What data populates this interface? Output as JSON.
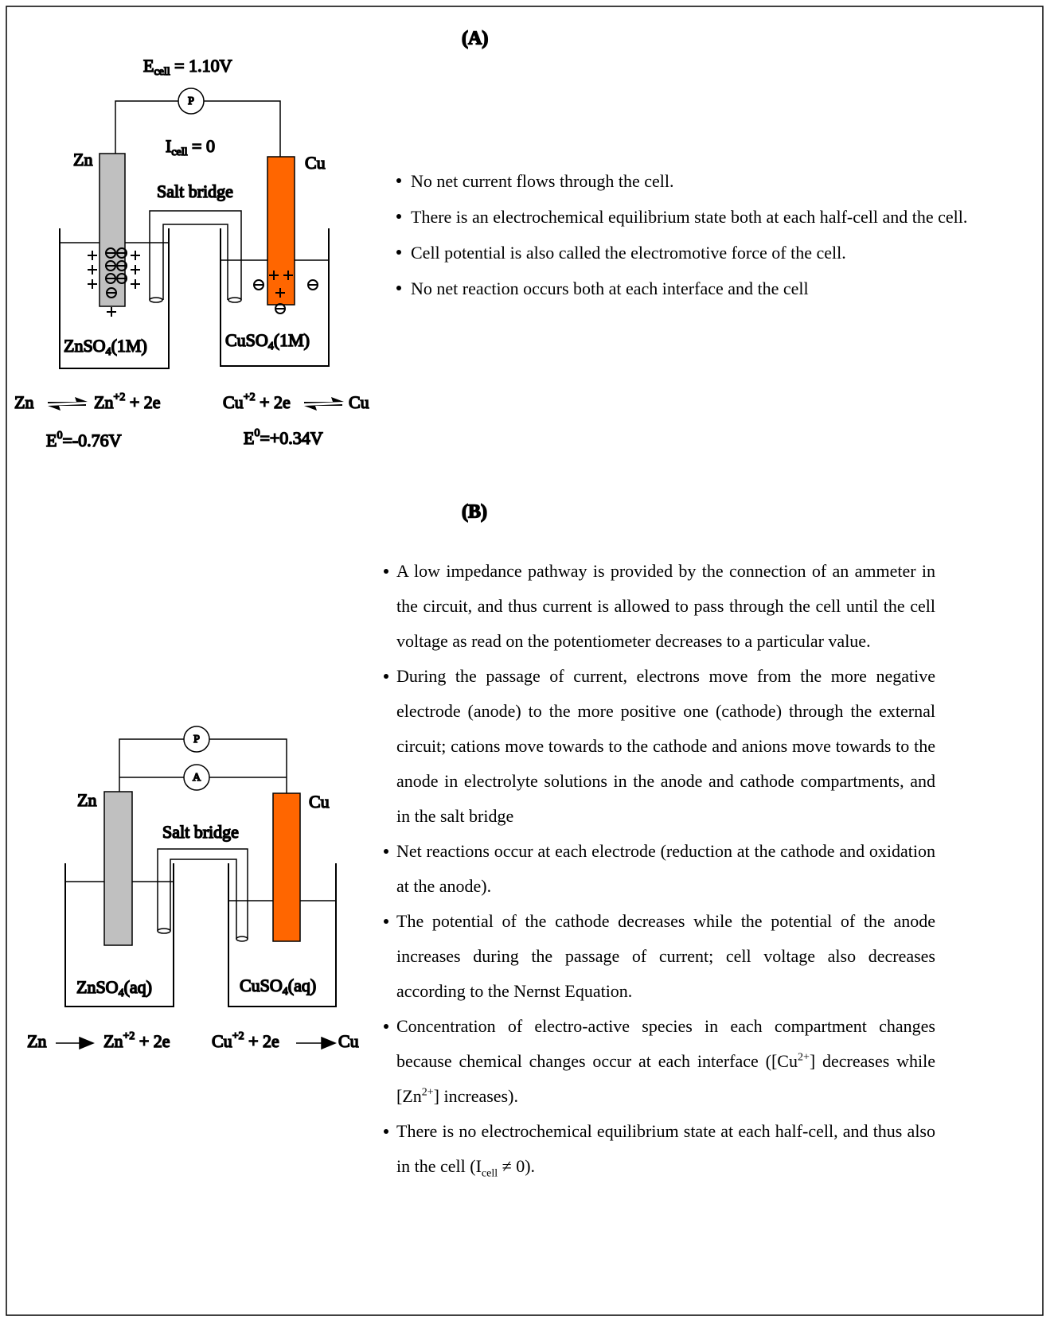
{
  "panel_a": {
    "label": "(A)",
    "voltage": [
      "E",
      {
        "sub": "cell"
      },
      " = 1.10V"
    ],
    "meter": "P",
    "current": [
      "I",
      {
        "sub": "cell"
      },
      " = 0"
    ],
    "anode": "Zn",
    "cathode": "Cu",
    "salt_bridge": "Salt bridge",
    "anode_solution": [
      "ZnSO",
      {
        "sub": "4"
      },
      "(1M)"
    ],
    "cathode_solution": [
      "CuSO",
      {
        "sub": "4"
      },
      "(1M)"
    ],
    "anode_reaction": {
      "reactant": "Zn",
      "product": [
        "Zn",
        {
          "sup": "+2"
        },
        " + 2e"
      ]
    },
    "cathode_reaction": {
      "reactant": [
        "Cu",
        {
          "sup": "+2"
        },
        " + 2e"
      ],
      "product": "Cu"
    },
    "anode_potential": [
      "E",
      {
        "sup": "0"
      },
      "=-0.76V"
    ],
    "cathode_potential": [
      "E",
      {
        "sup": "0"
      },
      "=+0.34V"
    ],
    "notes": [
      [
        "No net current flows through the cell."
      ],
      [
        "There is an electrochemical equilibrium state both at each half-cell and the cell."
      ],
      [
        "Cell potential is also called the electromotive force of the cell."
      ],
      [
        "No net reaction occurs both at each interface and the cell"
      ]
    ]
  },
  "panel_b": {
    "label": "(B)",
    "potentiometer": "P",
    "ammeter": "A",
    "anode": "Zn",
    "cathode": "Cu",
    "salt_bridge": "Salt bridge",
    "anode_solution": [
      "ZnSO",
      {
        "sub": "4"
      },
      "(aq)"
    ],
    "cathode_solution": [
      "CuSO",
      {
        "sub": "4"
      },
      "(aq)"
    ],
    "anode_reaction": {
      "reactant": "Zn",
      "product": [
        "Zn",
        {
          "sup": "+2"
        },
        " + 2e"
      ]
    },
    "cathode_reaction": {
      "reactant": [
        "Cu",
        {
          "sup": "+2"
        },
        " + 2e"
      ],
      "product": "Cu"
    },
    "notes": [
      [
        "A low impedance pathway is provided by the connection of an ammeter in the circuit, and thus current is allowed to pass through the cell until the cell voltage as read on the potentiometer decreases to a particular value."
      ],
      [
        "During the passage of current, electrons move from the more negative electrode (anode) to the more positive one (cathode) through the external circuit; cations move towards to the cathode and anions move towards to the anode in electrolyte solutions in the anode and cathode compartments, and in the salt bridge"
      ],
      [
        "Net reactions occur at each electrode (reduction at the cathode and oxidation at the anode)."
      ],
      [
        "The potential of the cathode decreases while the potential of the anode increases during the passage of current; cell voltage also decreases according to the Nernst Equation."
      ],
      [
        "Concentration of electro-active species in each compartment changes because chemical changes occur at each interface ([Cu",
        {
          "sup": "2+"
        },
        "] decreases while [Zn",
        {
          "sup": "2+"
        },
        "] increases)."
      ],
      [
        "There is no electrochemical equilibrium state at each half-cell, and thus also in the cell (I",
        {
          "sub": "cell"
        },
        " ≠ 0)."
      ]
    ]
  }
}
